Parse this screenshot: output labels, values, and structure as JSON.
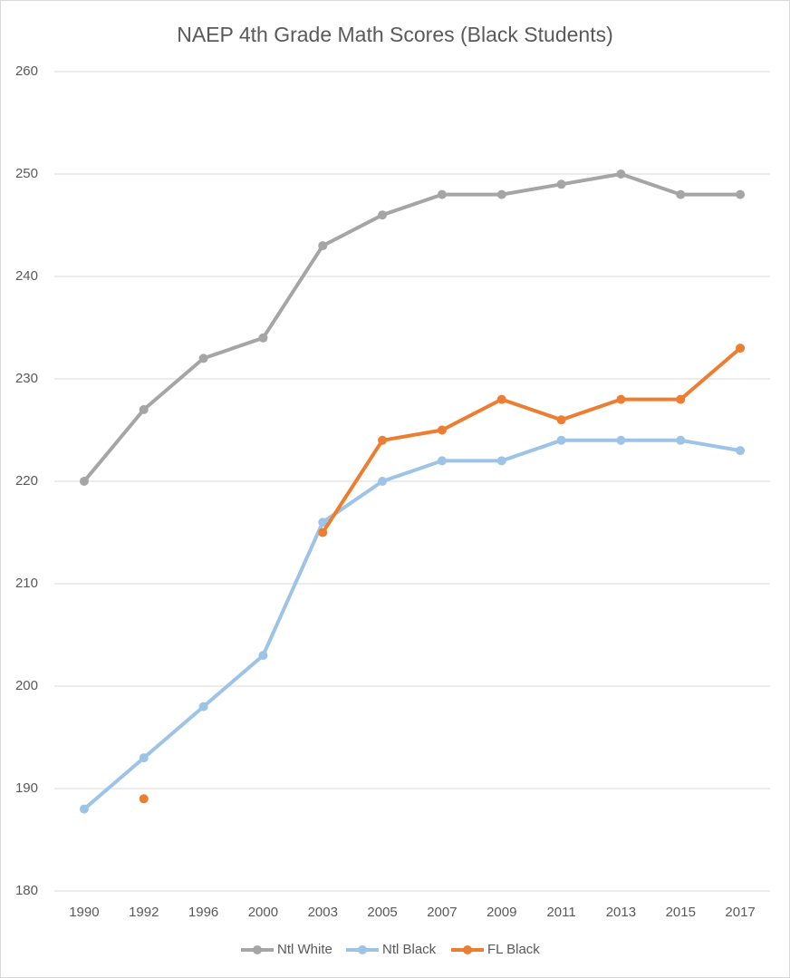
{
  "chart_data": {
    "type": "line",
    "title": "NAEP 4th Grade Math Scores (Black Students)",
    "categories": [
      "1990",
      "1992",
      "1996",
      "2000",
      "2003",
      "2005",
      "2007",
      "2009",
      "2011",
      "2013",
      "2015",
      "2017"
    ],
    "series": [
      {
        "name": "Ntl White",
        "color": "#a5a5a5",
        "values": [
          220,
          227,
          232,
          234,
          243,
          246,
          248,
          248,
          249,
          250,
          248,
          248
        ]
      },
      {
        "name": "Ntl Black",
        "color": "#9dc3e6",
        "values": [
          188,
          193,
          198,
          203,
          216,
          220,
          222,
          222,
          224,
          224,
          224,
          223
        ]
      },
      {
        "name": "FL Black",
        "color": "#ed7d31",
        "values": [
          null,
          189,
          null,
          null,
          215,
          224,
          225,
          228,
          226,
          228,
          228,
          233
        ]
      }
    ],
    "ylim": [
      180,
      260
    ],
    "yticks": [
      180,
      190,
      200,
      210,
      220,
      230,
      240,
      250,
      260
    ],
    "grid": true,
    "legend": "bottom"
  }
}
